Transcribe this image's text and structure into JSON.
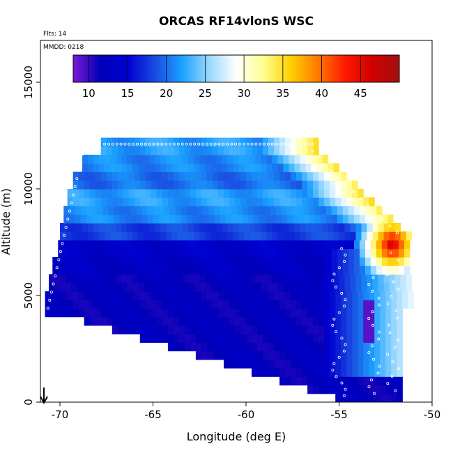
{
  "chart_data": {
    "type": "heatmap",
    "title": "ORCAS RF14vlonS WSC",
    "annotations": {
      "flights": "Flts: 14",
      "date": "MMDD: 0218"
    },
    "xlabel": "Longitude (deg E)",
    "ylabel": "Altitude (m)",
    "xlim": [
      -71,
      -50
    ],
    "ylim": [
      0,
      16500
    ],
    "xticks": [
      -70,
      -65,
      -60,
      -55,
      -50
    ],
    "yticks": [
      0,
      5000,
      10000,
      15000
    ],
    "colorbar": {
      "range": [
        8,
        50
      ],
      "ticks": [
        10,
        15,
        20,
        25,
        30,
        35,
        40,
        45
      ],
      "colors": [
        "#7a1ad0",
        "#0000b8",
        "#0000d0",
        "#1a4ae0",
        "#1aa0ff",
        "#9ad8ff",
        "#ffffff",
        "#ffff90",
        "#ffd000",
        "#ff7a00",
        "#ff1a00",
        "#d00000",
        "#a01010"
      ]
    },
    "field": {
      "description_units": "WSC wind speed",
      "altitude_bands": [
        {
          "alt": [
            11600,
            12200
          ],
          "west": -67.8,
          "value": 22
        },
        {
          "alt": [
            10800,
            11600
          ],
          "west": -68.8,
          "value": 21
        },
        {
          "alt": [
            10000,
            10800
          ],
          "west": -69.3,
          "value": 20
        },
        {
          "alt": [
            9200,
            10000
          ],
          "west": -69.6,
          "value": 22
        },
        {
          "alt": [
            8400,
            9200
          ],
          "west": -69.8,
          "value": 21
        },
        {
          "alt": [
            7600,
            8400
          ],
          "west": -70.0,
          "value": 18
        },
        {
          "alt": [
            6800,
            7600
          ],
          "west": -70.1,
          "value": 14
        },
        {
          "alt": [
            6000,
            6800
          ],
          "west": -70.4,
          "value": 13
        },
        {
          "alt": [
            5200,
            6000
          ],
          "west": -70.6,
          "value": 12
        },
        {
          "alt": [
            4300,
            5200
          ],
          "west": -70.8,
          "value": 12
        }
      ],
      "max_region": {
        "lon": [
          -53.5,
          -51.4
        ],
        "alt": [
          6500,
          7800
        ],
        "value": 47
      },
      "flight_track_note": "white circle markers"
    },
    "wind_arrow": {
      "lon": -70.7,
      "alt": 0,
      "direction": "down"
    }
  }
}
